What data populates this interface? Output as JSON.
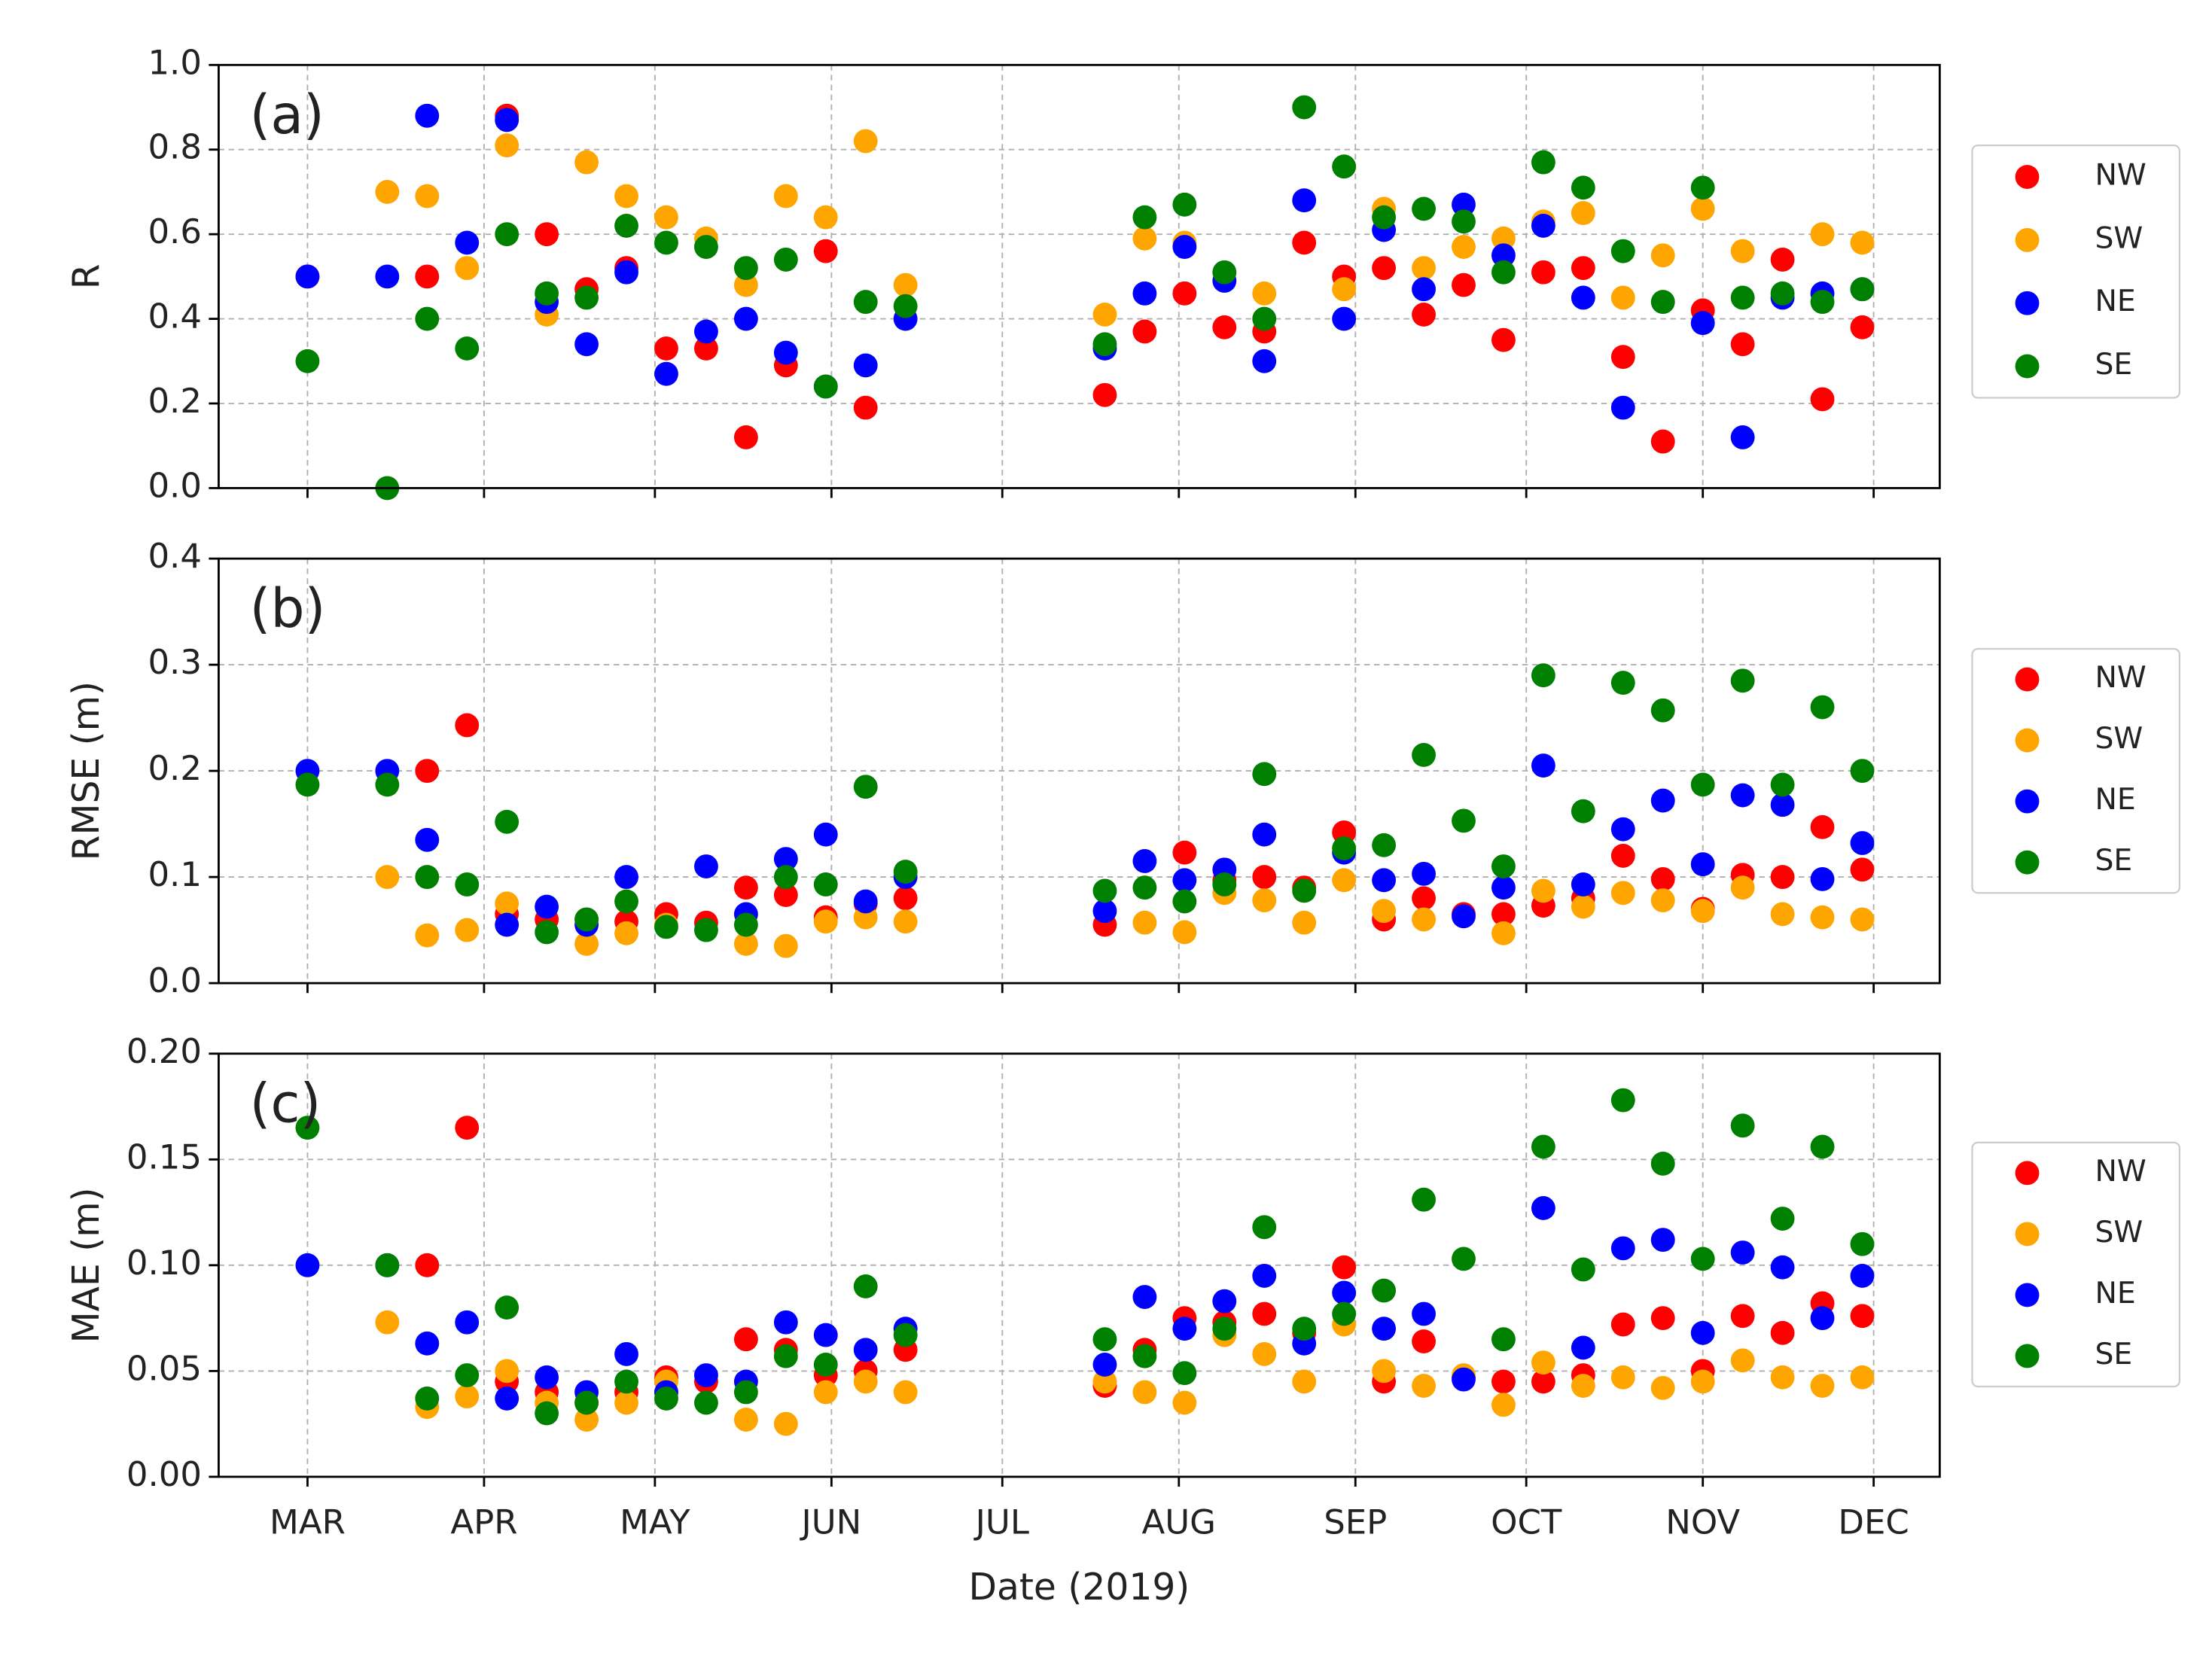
{
  "chart_data": [
    {
      "type": "scatter",
      "annotation": "(a)",
      "ylabel": "R",
      "x": [
        60,
        74,
        81,
        88,
        95,
        102,
        109,
        116,
        123,
        130,
        137,
        144,
        151,
        158,
        165,
        200,
        207,
        214,
        221,
        228,
        235,
        242,
        249,
        256,
        263,
        270,
        277,
        284,
        291,
        298,
        305,
        312,
        319,
        326,
        333
      ],
      "xlim": [
        44.4,
        346.6
      ],
      "xticks": [
        60,
        91,
        121,
        152,
        182,
        213,
        244,
        274,
        305,
        335
      ],
      "ylim": [
        0,
        1
      ],
      "yticks": [
        {
          "value": 0,
          "label": "0.0"
        },
        0.2,
        0.4,
        0.6,
        0.8,
        {
          "value": 1,
          "label": "1.0"
        }
      ],
      "grid": true,
      "legend": "outside-right",
      "series": [
        {
          "name": "NW",
          "color": "#ff0000",
          "values": [
            0.5,
            null,
            0.5,
            null,
            0.88,
            0.6,
            0.47,
            0.52,
            0.33,
            0.33,
            0.12,
            0.29,
            0.56,
            0.19,
            null,
            0.22,
            0.37,
            0.46,
            0.38,
            0.37,
            0.58,
            0.5,
            0.52,
            0.41,
            0.48,
            0.35,
            0.51,
            0.52,
            0.31,
            0.11,
            0.42,
            0.34,
            0.54,
            0.21,
            0.38
          ]
        },
        {
          "name": "SW",
          "color": "#ffa500",
          "values": [
            null,
            0.7,
            0.69,
            0.52,
            0.81,
            0.41,
            0.77,
            0.69,
            0.64,
            0.59,
            0.48,
            0.69,
            0.64,
            0.82,
            0.48,
            0.41,
            0.59,
            0.58,
            null,
            0.46,
            null,
            0.47,
            0.66,
            0.52,
            0.57,
            0.59,
            0.63,
            0.65,
            0.45,
            0.55,
            0.66,
            0.56,
            null,
            0.6,
            0.58
          ]
        },
        {
          "name": "NE",
          "color": "#0000ff",
          "values": [
            0.5,
            0.5,
            0.88,
            0.58,
            0.87,
            0.44,
            0.34,
            0.51,
            0.27,
            0.37,
            0.4,
            0.32,
            0.24,
            0.29,
            0.4,
            0.33,
            0.46,
            0.57,
            0.49,
            0.3,
            0.68,
            0.4,
            0.61,
            0.47,
            0.67,
            0.55,
            0.62,
            0.45,
            0.19,
            null,
            0.39,
            0.12,
            0.45,
            0.46,
            0.47
          ]
        },
        {
          "name": "SE",
          "color": "#008000",
          "values": [
            0.3,
            0,
            0.4,
            0.33,
            0.6,
            0.46,
            0.45,
            0.62,
            0.58,
            0.57,
            0.52,
            0.54,
            0.24,
            0.44,
            0.43,
            0.34,
            0.64,
            0.67,
            0.51,
            0.4,
            0.9,
            0.76,
            0.64,
            0.66,
            0.63,
            0.51,
            0.77,
            0.71,
            0.56,
            0.44,
            0.71,
            0.45,
            0.46,
            0.44,
            0.47
          ]
        }
      ]
    },
    {
      "type": "scatter",
      "annotation": "(b)",
      "ylabel": "RMSE (m)",
      "x": [
        60,
        74,
        81,
        88,
        95,
        102,
        109,
        116,
        123,
        130,
        137,
        144,
        151,
        158,
        165,
        200,
        207,
        214,
        221,
        228,
        235,
        242,
        249,
        256,
        263,
        270,
        277,
        284,
        291,
        298,
        305,
        312,
        319,
        326,
        333
      ],
      "xlim": [
        44.4,
        346.6
      ],
      "xticks": [
        60,
        91,
        121,
        152,
        182,
        213,
        244,
        274,
        305,
        335
      ],
      "ylim": [
        0,
        0.4
      ],
      "yticks": [
        {
          "value": 0,
          "label": "0.0"
        },
        0.1,
        0.2,
        0.3,
        0.4
      ],
      "grid": true,
      "legend": "outside-right",
      "series": [
        {
          "name": "NW",
          "color": "#ff0000",
          "values": [
            null,
            null,
            0.2,
            0.243,
            0.065,
            0.06,
            0.06,
            0.058,
            0.065,
            0.057,
            0.09,
            0.083,
            0.062,
            0.075,
            0.08,
            0.055,
            null,
            0.123,
            0.097,
            0.1,
            0.09,
            0.142,
            0.06,
            0.08,
            0.065,
            0.065,
            0.073,
            0.08,
            0.12,
            0.098,
            0.07,
            0.102,
            0.1,
            0.147,
            0.107
          ]
        },
        {
          "name": "SW",
          "color": "#ffa500",
          "values": [
            null,
            0.1,
            0.045,
            0.05,
            0.075,
            null,
            0.037,
            0.047,
            0.055,
            null,
            0.037,
            0.035,
            0.058,
            0.062,
            0.058,
            null,
            0.057,
            0.048,
            0.085,
            0.078,
            0.057,
            0.097,
            0.068,
            0.06,
            null,
            0.047,
            0.087,
            0.072,
            0.085,
            0.078,
            0.068,
            0.09,
            0.065,
            0.062,
            0.06
          ]
        },
        {
          "name": "NE",
          "color": "#0000ff",
          "values": [
            0.2,
            0.2,
            0.135,
            null,
            0.055,
            0.072,
            0.055,
            0.1,
            null,
            0.11,
            0.065,
            0.117,
            0.14,
            0.077,
            0.1,
            0.068,
            0.115,
            0.097,
            0.107,
            0.14,
            null,
            0.123,
            0.097,
            0.103,
            0.063,
            0.09,
            0.205,
            0.093,
            0.145,
            0.172,
            0.112,
            0.177,
            0.168,
            0.098,
            0.132
          ]
        },
        {
          "name": "SE",
          "color": "#008000",
          "values": [
            0.187,
            0.187,
            0.1,
            0.093,
            0.152,
            0.048,
            0.06,
            0.077,
            0.053,
            0.05,
            0.055,
            0.1,
            0.093,
            0.185,
            0.105,
            0.087,
            0.09,
            0.077,
            0.093,
            0.197,
            0.087,
            0.127,
            0.13,
            0.215,
            0.153,
            0.11,
            0.29,
            0.162,
            0.283,
            0.257,
            0.187,
            0.285,
            0.187,
            0.26,
            0.2
          ]
        }
      ]
    },
    {
      "type": "scatter",
      "annotation": "(c)",
      "ylabel": "MAE (m)",
      "xlabel": "Date (2019)",
      "x": [
        60,
        74,
        81,
        88,
        95,
        102,
        109,
        116,
        123,
        130,
        137,
        144,
        151,
        158,
        165,
        200,
        207,
        214,
        221,
        228,
        235,
        242,
        249,
        256,
        263,
        270,
        277,
        284,
        291,
        298,
        305,
        312,
        319,
        326,
        333
      ],
      "xlim": [
        44.4,
        346.6
      ],
      "xticks": [
        {
          "value": 60,
          "label": "MAR"
        },
        {
          "value": 91,
          "label": "APR"
        },
        {
          "value": 121,
          "label": "MAY"
        },
        {
          "value": 152,
          "label": "JUN"
        },
        {
          "value": 182,
          "label": "JUL"
        },
        {
          "value": 213,
          "label": "AUG"
        },
        {
          "value": 244,
          "label": "SEP"
        },
        {
          "value": 274,
          "label": "OCT"
        },
        {
          "value": 305,
          "label": "NOV"
        },
        {
          "value": 335,
          "label": "DEC"
        }
      ],
      "ylim": [
        0,
        0.2
      ],
      "yticks": [
        {
          "value": 0,
          "label": "0.00"
        },
        0.05,
        {
          "value": 0.1,
          "label": "0.10"
        },
        0.15,
        {
          "value": 0.2,
          "label": "0.20"
        }
      ],
      "grid": true,
      "legend": "outside-right",
      "series": [
        {
          "name": "NW",
          "color": "#ff0000",
          "values": [
            null,
            null,
            0.1,
            0.165,
            0.045,
            0.04,
            0.035,
            0.04,
            0.047,
            0.045,
            0.065,
            0.06,
            0.048,
            0.05,
            0.06,
            0.043,
            0.06,
            0.075,
            0.073,
            0.077,
            0.068,
            0.099,
            0.045,
            0.064,
            0.047,
            0.045,
            0.045,
            0.048,
            0.072,
            0.075,
            0.05,
            0.076,
            0.068,
            0.082,
            0.076
          ]
        },
        {
          "name": "SW",
          "color": "#ffa500",
          "values": [
            null,
            0.073,
            0.033,
            0.038,
            0.05,
            0.035,
            0.027,
            0.035,
            0.045,
            null,
            0.027,
            0.025,
            0.04,
            0.045,
            0.04,
            0.045,
            0.04,
            0.035,
            0.067,
            0.058,
            0.045,
            0.072,
            0.05,
            0.043,
            0.048,
            0.034,
            0.054,
            0.043,
            0.047,
            0.042,
            0.045,
            0.055,
            0.047,
            0.043,
            0.047
          ]
        },
        {
          "name": "NE",
          "color": "#0000ff",
          "values": [
            0.1,
            0.1,
            0.063,
            0.073,
            0.037,
            0.047,
            0.04,
            0.058,
            0.04,
            0.048,
            0.045,
            0.073,
            0.067,
            0.06,
            0.07,
            0.053,
            0.085,
            0.07,
            0.083,
            0.095,
            0.063,
            0.087,
            0.07,
            0.077,
            0.046,
            null,
            0.127,
            0.061,
            0.108,
            0.112,
            0.068,
            0.106,
            0.099,
            0.075,
            0.095
          ]
        },
        {
          "name": "SE",
          "color": "#008000",
          "values": [
            0.165,
            0.1,
            0.037,
            0.048,
            0.08,
            0.03,
            0.035,
            0.045,
            0.037,
            0.035,
            0.04,
            0.057,
            0.053,
            0.09,
            0.067,
            0.065,
            0.057,
            0.049,
            0.07,
            0.118,
            0.07,
            0.077,
            0.088,
            0.131,
            0.103,
            0.065,
            0.156,
            0.098,
            0.178,
            0.148,
            0.103,
            0.166,
            0.122,
            0.156,
            0.11
          ]
        }
      ]
    }
  ]
}
